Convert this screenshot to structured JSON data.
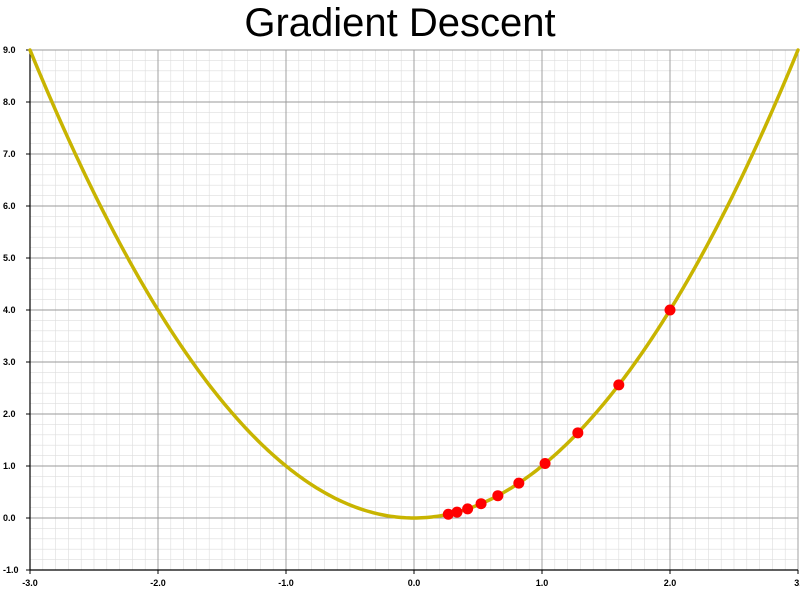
{
  "chart_data": {
    "type": "scatter",
    "title": "Gradient Descent",
    "xlabel": "",
    "ylabel": "",
    "xlim": [
      -3.0,
      3.0
    ],
    "ylim": [
      -1.0,
      9.0
    ],
    "grid": true,
    "x_ticks": [
      -3.0,
      -2.0,
      -1.0,
      0.0,
      1.0,
      2.0,
      3.0
    ],
    "x_tick_labels": [
      "-3.0",
      "-2.0",
      "-1.0",
      "0.0",
      "1.0",
      "2.0",
      "3."
    ],
    "y_ticks": [
      -1.0,
      0.0,
      1.0,
      2.0,
      3.0,
      4.0,
      5.0,
      6.0,
      7.0,
      8.0,
      9.0
    ],
    "y_tick_labels": [
      "-1.0",
      "0.0",
      "1.0",
      "2.0",
      "3.0",
      "4.0",
      "5.0",
      "6.0",
      "7.0",
      "8.0",
      "9.0"
    ],
    "series": [
      {
        "type": "line",
        "function": "y = x^2",
        "x_range": [
          -3.0,
          3.0
        ],
        "color": "#c8b400"
      },
      {
        "type": "scatter",
        "color": "#ff0000",
        "x": [
          2.0,
          1.6,
          1.28,
          1.024,
          0.819,
          0.655,
          0.524,
          0.419,
          0.336,
          0.268
        ],
        "y": [
          4.0,
          2.56,
          1.638,
          1.049,
          0.671,
          0.429,
          0.275,
          0.176,
          0.113,
          0.072
        ]
      }
    ]
  },
  "colors": {
    "major_grid": "#999999",
    "minor_grid": "#dddddd",
    "axis": "#000000"
  }
}
